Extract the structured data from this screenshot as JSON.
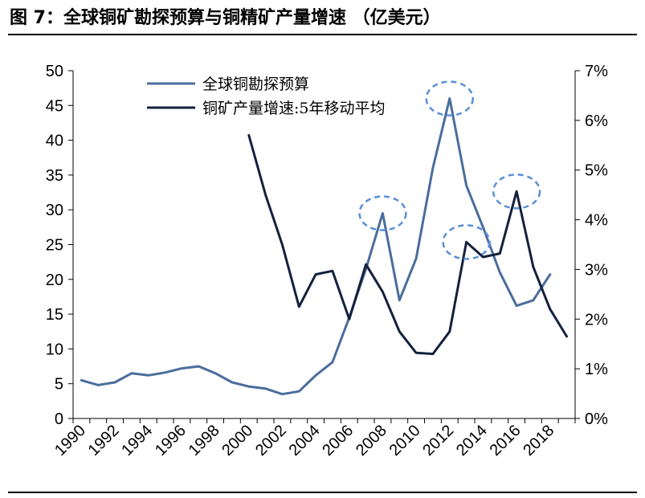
{
  "header": {
    "title": "图 7：全球铜矿勘探预算与铜精矿产量增速  （亿美元）"
  },
  "chart_data": {
    "type": "line",
    "title": "图 7：全球铜矿勘探预算与铜精矿产量增速  （亿美元）",
    "left_axis": {
      "ylim": [
        0,
        50
      ],
      "ticks": [
        "0",
        "5",
        "10",
        "15",
        "20",
        "25",
        "30",
        "35",
        "40",
        "45",
        "50"
      ]
    },
    "right_axis": {
      "ylim": [
        0,
        7
      ],
      "ticks": [
        "0%",
        "1%",
        "2%",
        "3%",
        "4%",
        "5%",
        "6%",
        "7%"
      ]
    },
    "x_tick_labels": [
      "1990",
      "1992",
      "1994",
      "1996",
      "1998",
      "2000",
      "2002",
      "2004",
      "2006",
      "2008",
      "2010",
      "2012",
      "2014",
      "2016",
      "2018"
    ],
    "x_range": [
      1990,
      2019
    ],
    "grid": false,
    "legend_position": "top-center",
    "series": [
      {
        "name": "全球铜勘探预算",
        "axis": "left",
        "color": "#4a6d9c",
        "x": [
          1990,
          1991,
          1992,
          1993,
          1994,
          1995,
          1996,
          1997,
          1998,
          1999,
          2000,
          2001,
          2002,
          2003,
          2004,
          2005,
          2006,
          2007,
          2008,
          2009,
          2010,
          2011,
          2012,
          2013,
          2014,
          2015,
          2016,
          2017,
          2018
        ],
        "values": [
          5.5,
          4.8,
          5.2,
          6.5,
          6.2,
          6.6,
          7.2,
          7.5,
          6.5,
          5.2,
          4.6,
          4.3,
          3.5,
          3.9,
          6.2,
          8.1,
          14.5,
          21.5,
          29.5,
          17.0,
          23.0,
          36.0,
          46.0,
          33.5,
          27.5,
          21.0,
          16.2,
          17.0,
          20.7
        ]
      },
      {
        "name": "铜矿产量增速:5年移动平均",
        "axis": "right",
        "color": "#14213d",
        "x": [
          2000,
          2001,
          2002,
          2003,
          2004,
          2005,
          2006,
          2007,
          2008,
          2009,
          2010,
          2011,
          2012,
          2013,
          2014,
          2015,
          2016,
          2017,
          2018,
          2019
        ],
        "values": [
          5.7,
          4.5,
          3.5,
          2.25,
          2.9,
          2.97,
          2.0,
          3.1,
          2.55,
          1.75,
          1.32,
          1.3,
          1.75,
          3.55,
          3.25,
          3.32,
          4.57,
          3.05,
          2.2,
          1.65
        ]
      }
    ],
    "annotations": [
      {
        "shape": "dashed-ellipse",
        "x": 2008,
        "axis": "left",
        "y": 29.5
      },
      {
        "shape": "dashed-ellipse",
        "x": 2012,
        "axis": "left",
        "y": 46.0
      },
      {
        "shape": "dashed-ellipse",
        "x": 2013,
        "axis": "right",
        "y": 3.55
      },
      {
        "shape": "dashed-ellipse",
        "x": 2016,
        "axis": "right",
        "y": 4.57
      }
    ],
    "annotation_color": "#5b8fd6"
  }
}
